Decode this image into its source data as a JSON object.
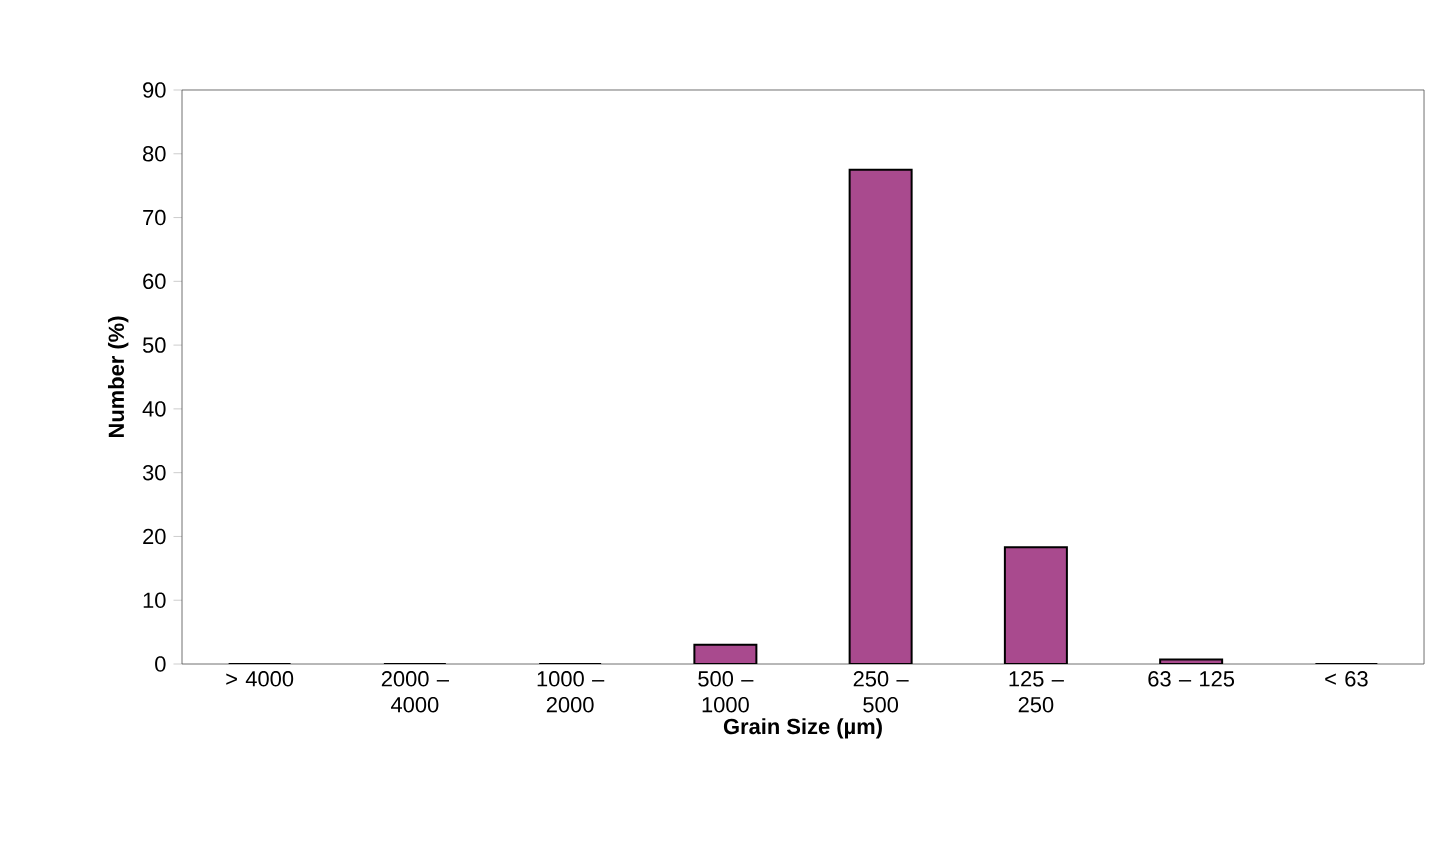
{
  "chart_data": {
    "type": "bar",
    "xlabel": "Grain Size (µm)",
    "ylabel": "Number (%)",
    "categories": [
      "> 4000",
      "2000 – 4000",
      "1000 – 2000",
      "500 – 1000",
      "250 – 500",
      "125 – 250",
      "63 – 125",
      "< 63"
    ],
    "values": [
      0,
      0,
      0,
      3,
      77.5,
      18.3,
      0.7,
      0
    ],
    "color": "#a94a8e",
    "ylim": [
      0,
      90
    ],
    "yticks": [
      0,
      10,
      20,
      30,
      40,
      50,
      60,
      70,
      80,
      90
    ],
    "grid": false
  }
}
